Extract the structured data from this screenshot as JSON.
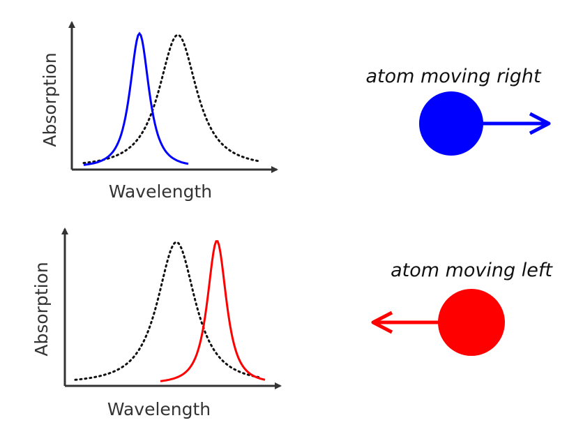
{
  "panels": [
    {
      "ylabel": "Absorption",
      "xlabel": "Wavelength",
      "shifted_color": "#0000ff",
      "atom_label": "atom moving right",
      "direction": "right"
    },
    {
      "ylabel": "Absorption",
      "xlabel": "Wavelength",
      "shifted_color": "#ff0000",
      "atom_label": "atom moving left",
      "direction": "left"
    }
  ]
}
